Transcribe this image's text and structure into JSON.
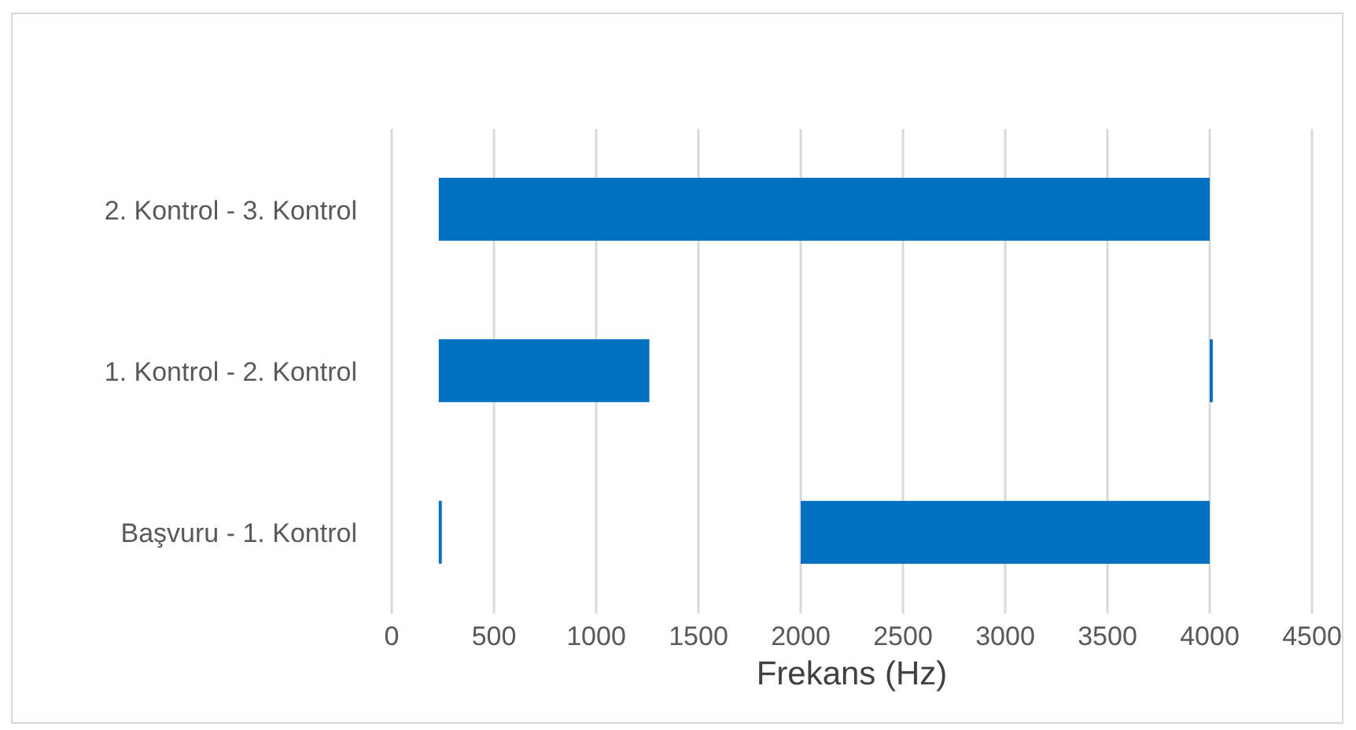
{
  "chart_data": {
    "type": "bar",
    "orientation": "horizontal",
    "xlabel": "Frekans (Hz)",
    "categories": [
      "2. Kontrol - 3. Kontrol",
      "1. Kontrol - 2. Kontrol",
      "Başvuru - 1. Kontrol"
    ],
    "series": [
      {
        "color": "#0070c0",
        "base": [
          230,
          230,
          230
        ],
        "values": [
          3770,
          1030,
          15
        ]
      },
      {
        "color": "#0070c0",
        "base": [
          null,
          4000,
          2000
        ],
        "values": [
          null,
          15,
          2000
        ]
      }
    ],
    "xlim": [
      0,
      4500
    ],
    "xticks": [
      0,
      500,
      1000,
      1500,
      2000,
      2500,
      3000,
      3500,
      4000,
      4500
    ],
    "grid": "x",
    "legend": false
  }
}
